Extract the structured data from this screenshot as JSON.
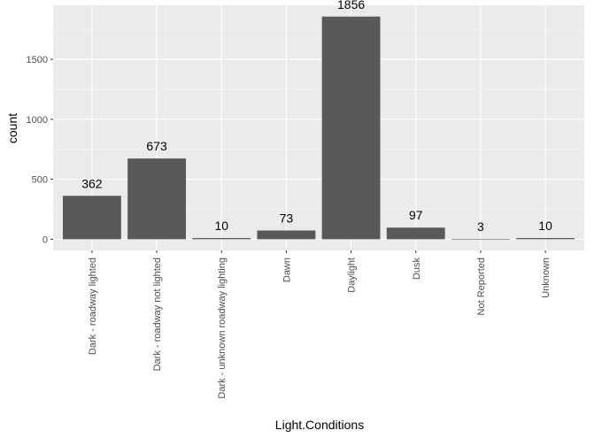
{
  "chart_data": {
    "type": "bar",
    "title": "",
    "xlabel": "Light.Conditions",
    "ylabel": "count",
    "categories": [
      "Dark - roadway lighted",
      "Dark - roadway not lighted",
      "Dark - unknown roadway lighting",
      "Dawn",
      "Daylight",
      "Dusk",
      "Not Reported",
      "Unknown"
    ],
    "values": [
      362,
      673,
      10,
      73,
      1856,
      97,
      3,
      10
    ],
    "data_labels": [
      "362",
      "673",
      "10",
      "73",
      "1856",
      "97",
      "3",
      "10"
    ],
    "yticks": [
      0,
      500,
      1000,
      1500
    ],
    "ytick_labels": [
      "0",
      "500",
      "1000",
      "1500"
    ],
    "ylim": [
      -93,
      1950
    ],
    "grid": true,
    "legend": "none",
    "colors": {
      "panel": "#ebebeb",
      "grid_major": "#ffffff",
      "bar": "#595959"
    }
  }
}
